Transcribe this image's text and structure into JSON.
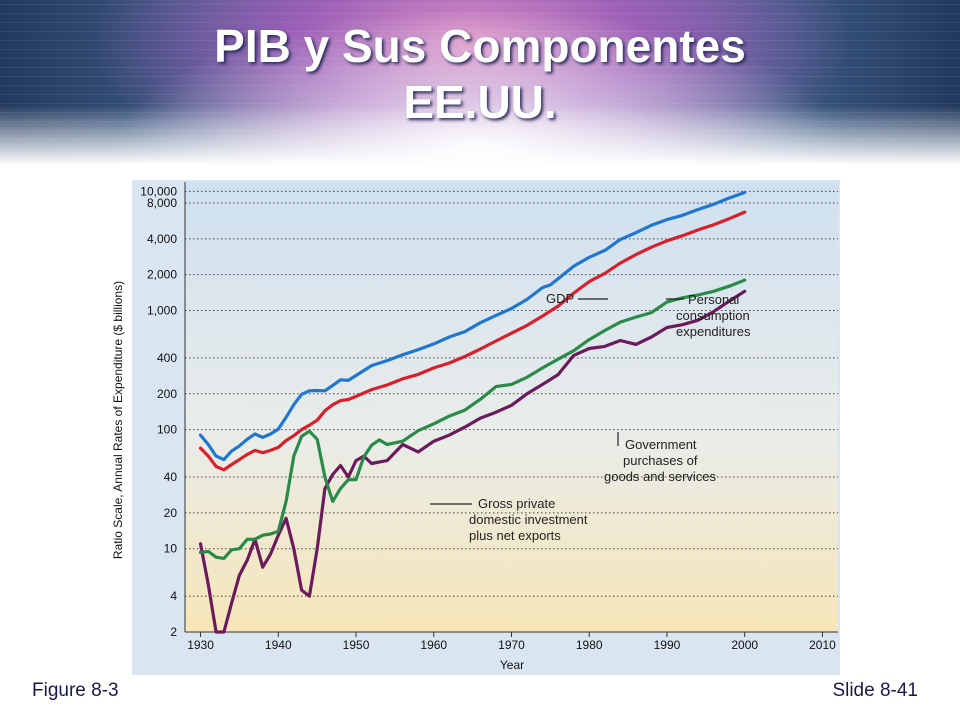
{
  "title": {
    "line1": "PIB y Sus Componentes",
    "line2": "EE.UU."
  },
  "footer": {
    "figure": "Figure 8-3",
    "slide": "Slide 8-41"
  },
  "colors": {
    "gdp": "#1f77d0",
    "consumption": "#d8202c",
    "government": "#2a8a48",
    "investment": "#6b1a5c"
  },
  "chart_data": {
    "type": "line",
    "xlabel": "Year",
    "ylabel": "Ratio Scale, Annual Rates of Expenditure ($ billions)",
    "xlim": [
      1928,
      2012
    ],
    "ylim": [
      2,
      12000
    ],
    "y_scale": "log",
    "grid": "horizontal dotted",
    "x_ticks": [
      1930,
      1940,
      1950,
      1960,
      1970,
      1980,
      1990,
      2000,
      2010
    ],
    "x_tick_labels": [
      "1930",
      "1940",
      "1950",
      "1960",
      "1970",
      "1980",
      "1990",
      "2000",
      "2010"
    ],
    "y_ticks": [
      2,
      4,
      10,
      20,
      40,
      100,
      200,
      400,
      1000,
      2000,
      4000,
      8000,
      10000
    ],
    "y_tick_labels": [
      "2",
      "4",
      "10",
      "20",
      "40",
      "100",
      "200",
      "400",
      "1,000",
      "2,000",
      "4,000",
      "8,000",
      "10,000"
    ],
    "series": [
      {
        "name": "GDP",
        "color": "#1f77d0",
        "x": [
          1930,
          1931,
          1932,
          1933,
          1934,
          1935,
          1936,
          1937,
          1938,
          1939,
          1940,
          1941,
          1942,
          1943,
          1944,
          1945,
          1946,
          1947,
          1948,
          1949,
          1950,
          1952,
          1954,
          1956,
          1958,
          1960,
          1962,
          1964,
          1966,
          1968,
          1970,
          1972,
          1974,
          1975,
          1976,
          1978,
          1980,
          1982,
          1984,
          1986,
          1988,
          1990,
          1992,
          1994,
          1996,
          1998,
          2000
        ],
        "y": [
          90,
          75,
          60,
          56,
          66,
          73,
          83,
          92,
          86,
          92,
          101,
          127,
          162,
          198,
          212,
          213,
          212,
          235,
          262,
          259,
          285,
          345,
          380,
          425,
          470,
          525,
          600,
          665,
          790,
          910,
          1040,
          1240,
          1560,
          1640,
          1850,
          2350,
          2800,
          3200,
          3950,
          4500,
          5200,
          5800,
          6300,
          7050,
          7800,
          8800,
          9800
        ]
      },
      {
        "name": "Personal consumption expenditures",
        "color": "#d8202c",
        "x": [
          1930,
          1931,
          1932,
          1933,
          1934,
          1935,
          1936,
          1937,
          1938,
          1939,
          1940,
          1941,
          1942,
          1943,
          1944,
          1945,
          1946,
          1947,
          1948,
          1949,
          1950,
          1952,
          1954,
          1956,
          1958,
          1960,
          1962,
          1964,
          1966,
          1968,
          1970,
          1972,
          1974,
          1976,
          1978,
          1980,
          1982,
          1984,
          1986,
          1988,
          1990,
          1992,
          1994,
          1996,
          1998,
          2000
        ],
        "y": [
          70,
          60,
          49,
          46,
          51,
          56,
          62,
          67,
          64,
          67,
          71,
          81,
          89,
          100,
          109,
          120,
          144,
          162,
          175,
          179,
          190,
          217,
          237,
          267,
          291,
          330,
          363,
          411,
          475,
          555,
          645,
          750,
          900,
          1090,
          1400,
          1750,
          2050,
          2500,
          2950,
          3400,
          3850,
          4250,
          4750,
          5250,
          5900,
          6700
        ]
      },
      {
        "name": "Government purchases of goods and services",
        "color": "#2a8a48",
        "x": [
          1930,
          1931,
          1932,
          1933,
          1934,
          1935,
          1936,
          1937,
          1938,
          1939,
          1940,
          1941,
          1942,
          1943,
          1944,
          1945,
          1946,
          1947,
          1948,
          1949,
          1950,
          1951,
          1952,
          1953,
          1954,
          1956,
          1958,
          1960,
          1962,
          1964,
          1966,
          1968,
          1970,
          1972,
          1974,
          1976,
          1978,
          1980,
          1982,
          1984,
          1986,
          1988,
          1990,
          1992,
          1994,
          1996,
          1998,
          2000
        ],
        "y": [
          9.3,
          9.5,
          8.5,
          8.3,
          9.8,
          10,
          12,
          12,
          13,
          13.3,
          14,
          25,
          60,
          88,
          97,
          83,
          40,
          25,
          32,
          38,
          38,
          59,
          74,
          82,
          75,
          80,
          98,
          112,
          130,
          146,
          180,
          230,
          240,
          275,
          330,
          390,
          460,
          570,
          680,
          800,
          880,
          960,
          1180,
          1280,
          1350,
          1450,
          1600,
          1800
        ]
      },
      {
        "name": "Gross private domestic investment plus net exports",
        "color": "#6b1a5c",
        "x": [
          1930,
          1931,
          1932,
          1933,
          1934,
          1935,
          1936,
          1937,
          1938,
          1939,
          1940,
          1941,
          1942,
          1943,
          1944,
          1945,
          1946,
          1947,
          1948,
          1949,
          1950,
          1951,
          1952,
          1954,
          1956,
          1958,
          1960,
          1962,
          1964,
          1966,
          1968,
          1970,
          1972,
          1974,
          1976,
          1978,
          1980,
          1982,
          1984,
          1986,
          1988,
          1990,
          1992,
          1994,
          1996,
          1998,
          2000
        ],
        "y": [
          11,
          5,
          1.5,
          1.8,
          3.5,
          6,
          8,
          12,
          7,
          9,
          13,
          18,
          10,
          4.5,
          4,
          10,
          32,
          42,
          50,
          40,
          55,
          60,
          52,
          55,
          75,
          65,
          80,
          90,
          105,
          125,
          140,
          160,
          200,
          240,
          290,
          420,
          480,
          500,
          560,
          520,
          600,
          720,
          760,
          830,
          980,
          1200,
          1450
        ]
      }
    ],
    "annotations": [
      {
        "text": "GDP",
        "series": "GDP"
      },
      {
        "lines": [
          "Personal",
          "consumption",
          "expenditures"
        ],
        "series": "Personal consumption expenditures"
      },
      {
        "lines": [
          "Government",
          "purchases of",
          "goods and services"
        ],
        "series": "Government purchases of goods and services"
      },
      {
        "lines": [
          "Gross private",
          "domestic investment",
          "plus net exports"
        ],
        "series": "Gross private domestic investment plus net exports"
      }
    ]
  }
}
